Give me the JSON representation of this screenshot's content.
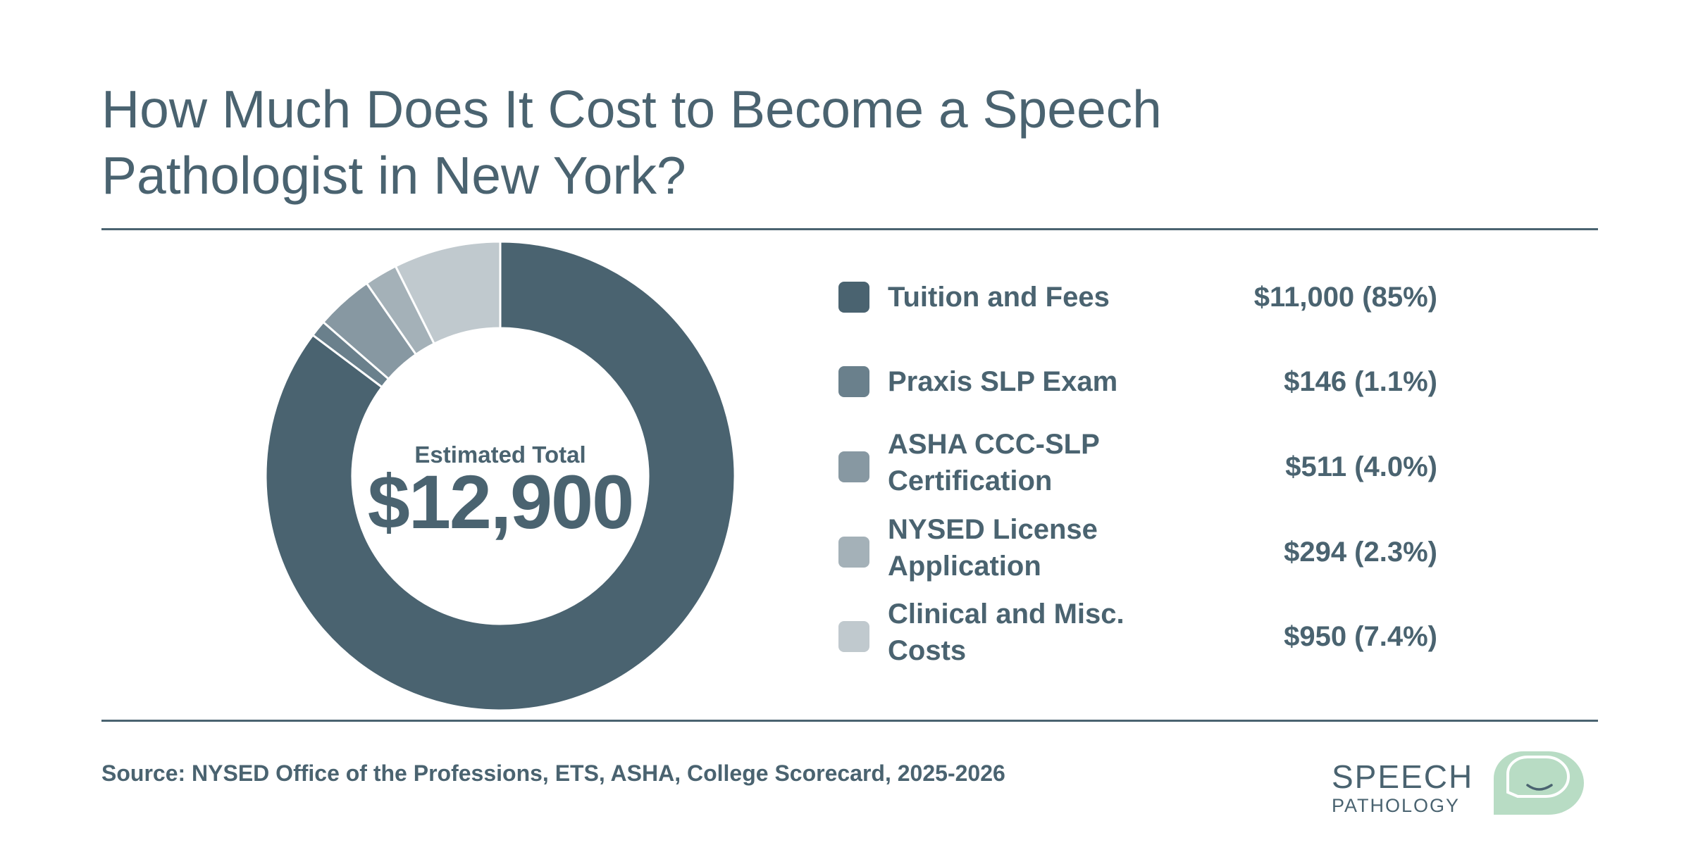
{
  "title": "How Much Does It Cost to Become a Speech Pathologist in New York?",
  "source": "Source: NYSED Office of the Professions, ETS, ASHA, College Scorecard, 2025-2026",
  "logo": {
    "line1": "SPEECH",
    "line2": "PATHOLOGY",
    "accent_color": "#b8dcc4"
  },
  "colors": {
    "text": "#4a6370",
    "rule": "#4a6370",
    "background": "#ffffff"
  },
  "chart_data": {
    "type": "pie",
    "donut": true,
    "center_label": "Estimated Total",
    "center_value": "$12,900",
    "legend_position": "right",
    "categories": [
      "Tuition and Fees",
      "Praxis SLP Exam",
      "ASHA CCC-SLP Certification",
      "NYSED License Application",
      "Clinical and Misc. Costs"
    ],
    "values": [
      11000,
      146,
      511,
      294,
      950
    ],
    "value_labels": [
      "$11,000 (85%)",
      "$146 (1.1%)",
      "$511 (4.0%)",
      "$294 (2.3%)",
      "$950 (7.4%)"
    ],
    "colors": [
      "#4a6370",
      "#6a808c",
      "#8798a2",
      "#a4b1b8",
      "#c0c9ce"
    ]
  }
}
